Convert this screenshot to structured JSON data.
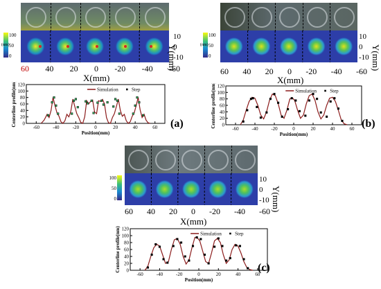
{
  "figure": {
    "panel_labels": [
      "(a)",
      "(b)",
      "(c)"
    ],
    "colorbar_ticks": [
      "100",
      "50",
      "0"
    ],
    "colorbar_unit": "(nm)",
    "heatmap_x_ticks": [
      "60",
      "40",
      "20",
      "0",
      "-20",
      "-40",
      "-60"
    ],
    "heatmap_xlabel": "X(mm)",
    "heatmap_y_ticks": [
      "10",
      "0",
      "-10"
    ],
    "heatmap_ylabel": "Y(mm)"
  },
  "chart_data": [
    {
      "type": "line",
      "panel": "(a)",
      "xlabel": "Position(mm)",
      "ylabel": "Centerline profile(nm)",
      "xlim": [
        -70,
        70
      ],
      "ylim": [
        0,
        120
      ],
      "x_ticks": [
        -60,
        -40,
        -20,
        0,
        20,
        40,
        60
      ],
      "y_ticks": [
        0,
        20,
        40,
        60,
        80,
        100,
        120
      ],
      "legend": [
        "Simulation",
        "Step"
      ],
      "colors": {
        "simulation": "#8b1a1a",
        "step": "#000000",
        "step_fill": "#2fae5a",
        "heatmap_marker": "#d62728"
      },
      "series": [
        {
          "name": "Simulation",
          "x": [
            -55,
            -52,
            -49,
            -47,
            -45,
            -43,
            -41,
            -39,
            -37,
            -35,
            -33,
            -31,
            -29,
            -27,
            -25,
            -23,
            -21,
            -19,
            -17,
            -15,
            -13,
            -11,
            -9,
            -7,
            -5,
            -3,
            -1,
            1,
            3,
            5,
            7,
            9,
            11,
            13,
            15,
            17,
            19,
            21,
            23,
            25,
            27,
            29,
            31,
            33,
            35,
            37,
            39,
            41,
            43,
            45,
            47,
            49,
            51,
            53,
            55
          ],
          "y": [
            0,
            10,
            28,
            18,
            40,
            80,
            55,
            32,
            22,
            5,
            0,
            8,
            28,
            20,
            38,
            75,
            52,
            30,
            18,
            3,
            0,
            20,
            70,
            60,
            68,
            72,
            35,
            30,
            70,
            68,
            74,
            60,
            18,
            2,
            0,
            18,
            30,
            52,
            75,
            40,
            22,
            28,
            8,
            0,
            5,
            22,
            32,
            55,
            80,
            42,
            18,
            28,
            10,
            2,
            0
          ]
        },
        {
          "name": "Step",
          "x": [
            -48,
            -44,
            -42,
            -40,
            -38,
            -24,
            -22,
            -20,
            -18,
            -10,
            -8,
            -4,
            -2,
            2,
            6,
            8,
            12,
            18,
            20,
            22,
            24,
            38,
            40,
            42,
            44,
            48
          ],
          "y": [
            25,
            65,
            80,
            55,
            30,
            30,
            70,
            75,
            50,
            68,
            62,
            70,
            32,
            64,
            70,
            58,
            65,
            52,
            75,
            70,
            30,
            30,
            55,
            80,
            65,
            25
          ]
        }
      ]
    },
    {
      "type": "line",
      "panel": "(b)",
      "xlabel": "Position(mm)",
      "ylabel": "Centerline profile(nm)",
      "xlim": [
        -70,
        70
      ],
      "ylim": [
        0,
        120
      ],
      "x_ticks": [
        -60,
        -40,
        -20,
        0,
        20,
        40,
        60
      ],
      "y_ticks": [
        0,
        20,
        40,
        60,
        80,
        100,
        120
      ],
      "legend": [
        "Simulation",
        "Step"
      ],
      "colors": {
        "simulation": "#8b1a1a",
        "step": "#000000"
      },
      "series": [
        {
          "name": "Simulation",
          "x": [
            -55,
            -52,
            -49,
            -46,
            -43,
            -40,
            -37,
            -34,
            -31,
            -28,
            -25,
            -22,
            -19,
            -16,
            -13,
            -10,
            -7,
            -4,
            -1,
            1,
            4,
            7,
            10,
            13,
            16,
            19,
            22,
            25,
            28,
            31,
            34,
            37,
            40,
            43,
            46,
            49,
            52,
            55
          ],
          "y": [
            0,
            15,
            45,
            72,
            85,
            82,
            60,
            30,
            18,
            40,
            75,
            95,
            90,
            65,
            30,
            20,
            45,
            80,
            82,
            75,
            45,
            20,
            30,
            65,
            90,
            95,
            75,
            40,
            18,
            30,
            60,
            82,
            85,
            72,
            45,
            15,
            3,
            0
          ]
        },
        {
          "name": "Step",
          "x": [
            -52,
            -48,
            -44,
            -42,
            -38,
            -34,
            -28,
            -24,
            -20,
            -16,
            -12,
            -6,
            -2,
            2,
            6,
            12,
            16,
            20,
            24,
            28,
            34,
            38,
            42,
            46,
            50
          ],
          "y": [
            10,
            45,
            80,
            82,
            55,
            22,
            38,
            80,
            95,
            68,
            25,
            48,
            82,
            75,
            42,
            28,
            75,
            95,
            80,
            38,
            25,
            72,
            82,
            50,
            12
          ]
        }
      ]
    },
    {
      "type": "line",
      "panel": "(c)",
      "xlabel": "Position(mm)",
      "ylabel": "Centerline profile(nm)",
      "xlim": [
        -70,
        70
      ],
      "ylim": [
        0,
        120
      ],
      "x_ticks": [
        -60,
        -40,
        -20,
        0,
        20,
        40,
        60
      ],
      "y_ticks": [
        0,
        20,
        40,
        60,
        80,
        100,
        120
      ],
      "legend": [
        "Simulation",
        "Step"
      ],
      "colors": {
        "simulation": "#8b1a1a",
        "step": "#000000"
      },
      "series": [
        {
          "name": "Simulation",
          "x": [
            -55,
            -52,
            -49,
            -46,
            -43,
            -40,
            -37,
            -34,
            -31,
            -28,
            -25,
            -22,
            -19,
            -16,
            -13,
            -10,
            -7,
            -4,
            -1,
            1,
            4,
            7,
            10,
            13,
            16,
            19,
            22,
            25,
            28,
            31,
            34,
            37,
            40,
            43,
            46,
            49,
            52,
            55
          ],
          "y": [
            0,
            12,
            40,
            65,
            75,
            70,
            45,
            20,
            25,
            60,
            88,
            92,
            75,
            40,
            18,
            30,
            65,
            95,
            92,
            85,
            55,
            25,
            20,
            50,
            85,
            92,
            80,
            45,
            20,
            30,
            60,
            75,
            70,
            50,
            25,
            8,
            2,
            0
          ]
        },
        {
          "name": "Step",
          "x": [
            -52,
            -48,
            -44,
            -40,
            -36,
            -32,
            -26,
            -22,
            -18,
            -14,
            -10,
            -6,
            -2,
            2,
            6,
            10,
            16,
            20,
            24,
            28,
            32,
            38,
            42,
            46,
            50
          ],
          "y": [
            8,
            45,
            75,
            68,
            32,
            22,
            70,
            90,
            80,
            40,
            28,
            70,
            95,
            90,
            45,
            20,
            68,
            92,
            70,
            28,
            35,
            72,
            70,
            32,
            6
          ]
        }
      ]
    }
  ]
}
